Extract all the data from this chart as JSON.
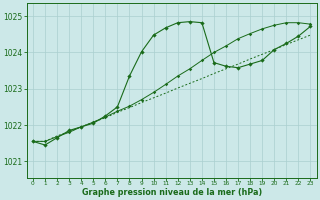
{
  "background_color": "#cce8e8",
  "grid_color": "#aacfcf",
  "line_color": "#1a6b1a",
  "xlim": [
    -0.5,
    23.5
  ],
  "ylim": [
    1020.55,
    1025.35
  ],
  "yticks": [
    1021,
    1022,
    1023,
    1024,
    1025
  ],
  "xticks": [
    0,
    1,
    2,
    3,
    4,
    5,
    6,
    7,
    8,
    9,
    10,
    11,
    12,
    13,
    14,
    15,
    16,
    17,
    18,
    19,
    20,
    21,
    22,
    23
  ],
  "series_dot_x": [
    0,
    1,
    2,
    3,
    4,
    5,
    6,
    7,
    8,
    9,
    10,
    11,
    12,
    13,
    14,
    15,
    16,
    17,
    18,
    19,
    20,
    21,
    22,
    23
  ],
  "series_dot_y": [
    1021.55,
    1021.55,
    1021.7,
    1021.82,
    1021.95,
    1022.08,
    1022.2,
    1022.35,
    1022.48,
    1022.62,
    1022.75,
    1022.88,
    1023.02,
    1023.15,
    1023.28,
    1023.42,
    1023.55,
    1023.68,
    1023.82,
    1023.95,
    1024.08,
    1024.22,
    1024.35,
    1024.48
  ],
  "series_smooth_x": [
    0,
    1,
    2,
    3,
    4,
    5,
    6,
    7,
    8,
    9,
    10,
    11,
    12,
    13,
    14,
    15,
    16,
    17,
    18,
    19,
    20,
    21,
    22,
    23
  ],
  "series_smooth_y": [
    1021.55,
    1021.55,
    1021.68,
    1021.8,
    1021.95,
    1022.08,
    1022.22,
    1022.38,
    1022.52,
    1022.7,
    1022.9,
    1023.12,
    1023.35,
    1023.55,
    1023.78,
    1024.0,
    1024.18,
    1024.38,
    1024.52,
    1024.65,
    1024.75,
    1024.82,
    1024.82,
    1024.78
  ],
  "series_main_x": [
    0,
    1,
    2,
    3,
    4,
    5,
    6,
    7,
    8,
    9,
    10,
    11,
    12,
    13,
    14,
    15,
    16,
    17,
    18,
    19,
    20,
    21,
    22,
    23
  ],
  "series_main_y": [
    1021.55,
    1021.45,
    1021.65,
    1021.85,
    1021.95,
    1022.05,
    1022.25,
    1022.5,
    1023.35,
    1024.02,
    1024.48,
    1024.68,
    1024.82,
    1024.85,
    1024.82,
    1023.72,
    1023.62,
    1023.58,
    1023.68,
    1023.78,
    1024.08,
    1024.25,
    1024.45,
    1024.72
  ],
  "xlabel": "Graphe pression niveau de la mer (hPa)",
  "ytick_fontsize": 5.5,
  "xtick_fontsize": 4.2,
  "xlabel_fontsize": 5.8
}
